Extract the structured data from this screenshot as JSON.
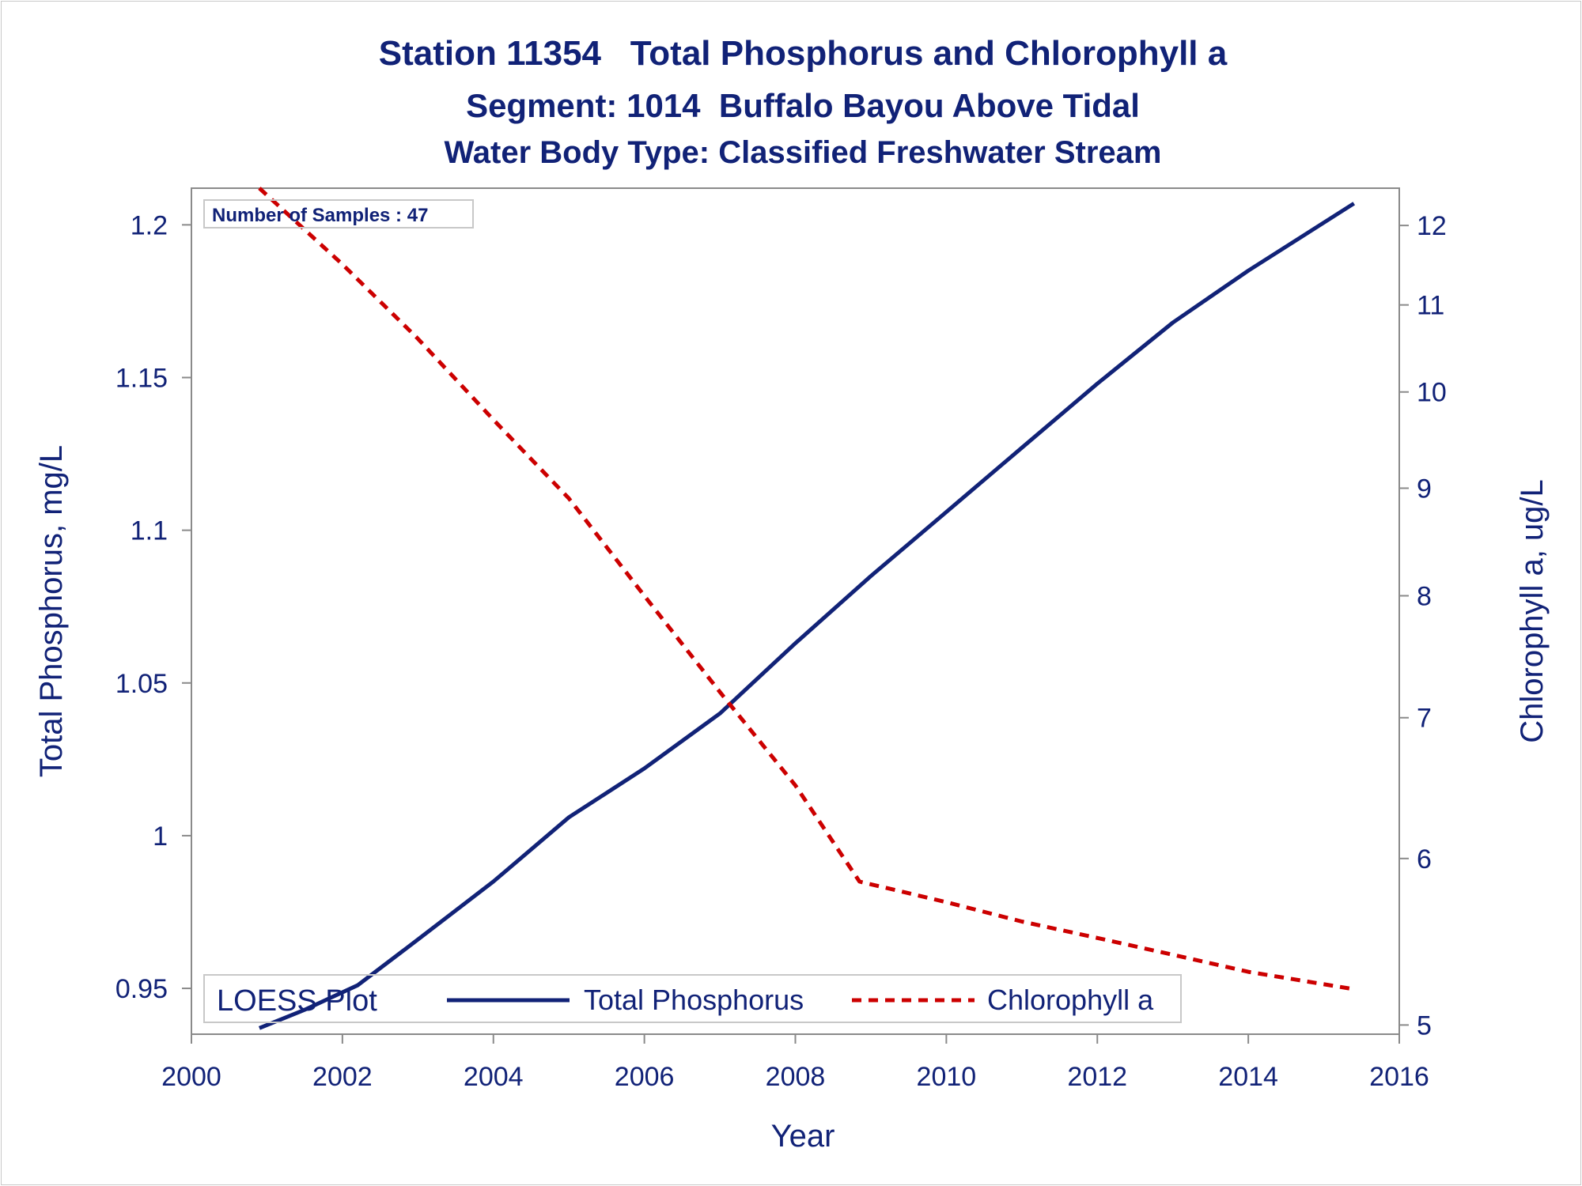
{
  "chart_data": {
    "type": "line",
    "title": "Station 11354   Total Phosphorus and Chlorophyll a",
    "subtitle": "Segment: 1014  Buffalo Bayou Above Tidal",
    "subtitle2": "Water Body Type: Classified Freshwater Stream",
    "xlabel": "Year",
    "ylabel": "Total Phosphorus, mg/L",
    "y2label": "Chlorophyll a, ug/L",
    "xlim": [
      2000,
      2016
    ],
    "ylim": [
      0.935,
      1.212
    ],
    "y2lim": [
      4.95,
      12.5
    ],
    "y2_scale": "log",
    "x_ticks": [
      "2000",
      "2002",
      "2004",
      "2006",
      "2008",
      "2010",
      "2012",
      "2014",
      "2016"
    ],
    "y_ticks": [
      "0.95",
      "1",
      "1.05",
      "1.1",
      "1.15",
      "1.2"
    ],
    "y2_ticks": [
      "5",
      "6",
      "7",
      "8",
      "9",
      "10",
      "11",
      "12"
    ],
    "grid": false,
    "legend_position": "bottom-inside",
    "inset_label": "Number of Samples : 47",
    "legend_title": "LOESS Plot",
    "series": [
      {
        "name": "Total Phosphorus",
        "axis": "left",
        "color": "#112277",
        "style": "solid",
        "x": [
          2000.9,
          2001.5,
          2002.2,
          2003.0,
          2004.0,
          2005.0,
          2006.0,
          2007.0,
          2008.0,
          2009.0,
          2010.0,
          2011.0,
          2012.0,
          2013.0,
          2014.0,
          2015.4
        ],
        "y": [
          0.937,
          0.943,
          0.951,
          0.966,
          0.985,
          1.006,
          1.022,
          1.04,
          1.063,
          1.085,
          1.106,
          1.127,
          1.148,
          1.168,
          1.185,
          1.207
        ]
      },
      {
        "name": "Chlorophyll a",
        "axis": "right",
        "color": "#cc0000",
        "style": "dashed",
        "x": [
          2000.9,
          2002.0,
          2003.0,
          2004.0,
          2005.0,
          2006.0,
          2007.0,
          2008.0,
          2008.85,
          2010.0,
          2011.0,
          2012.0,
          2013.0,
          2014.0,
          2015.4
        ],
        "y": [
          12.5,
          11.5,
          10.6,
          9.7,
          8.9,
          8.0,
          7.2,
          6.5,
          5.85,
          5.72,
          5.6,
          5.5,
          5.4,
          5.3,
          5.2
        ]
      }
    ]
  }
}
